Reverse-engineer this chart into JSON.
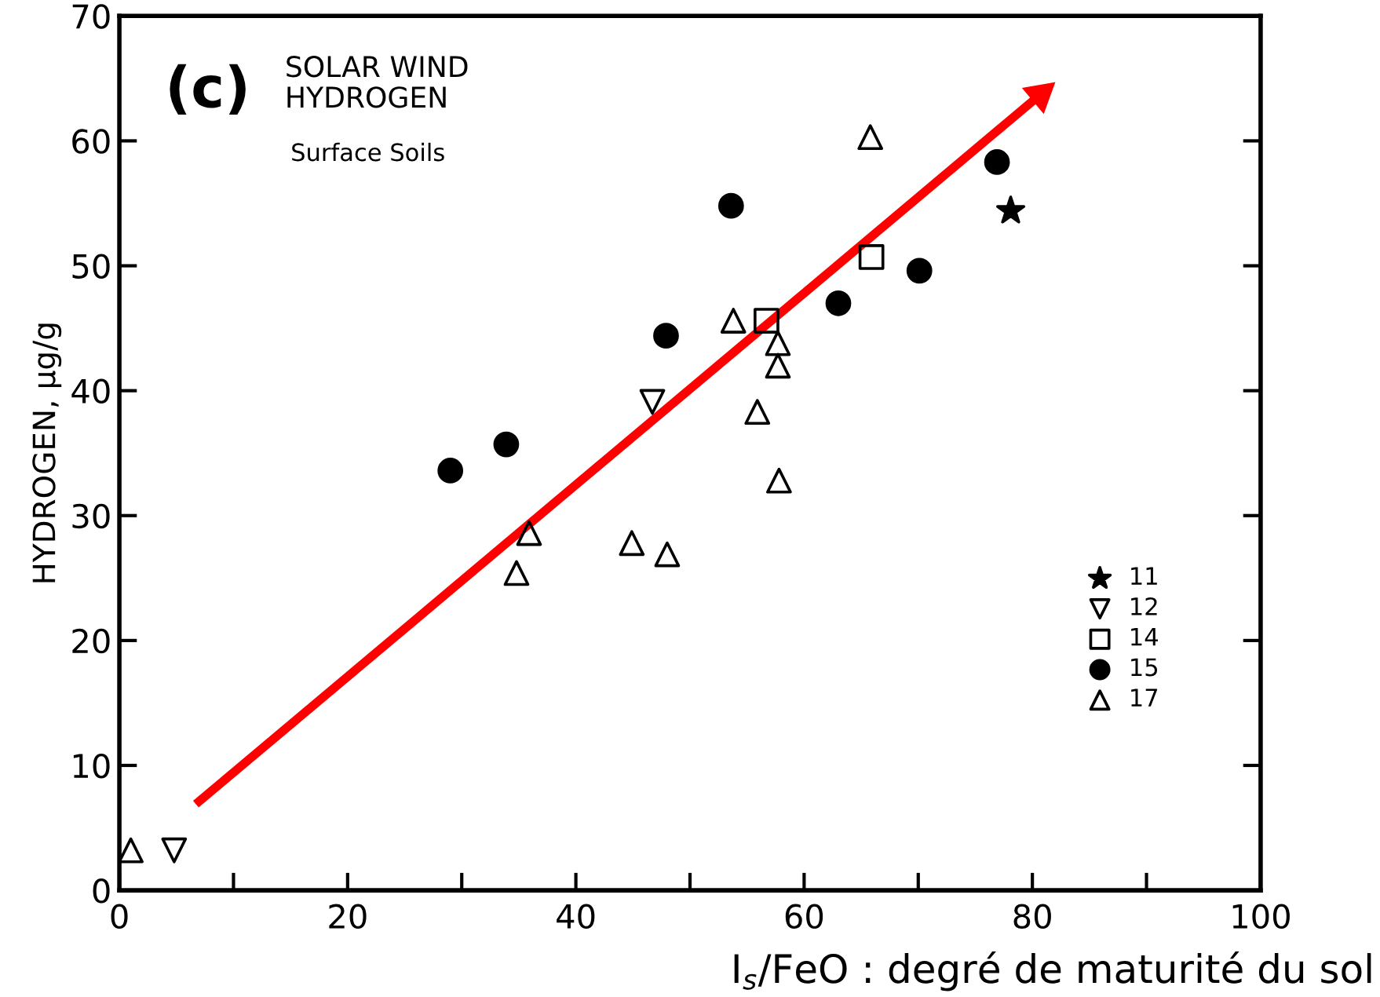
{
  "chart_data": {
    "type": "scatter",
    "title": "(c)",
    "subtitle": "SOLAR WIND\nHYDROGEN",
    "annotations": [
      "Surface Soils"
    ],
    "xlabel": "I$_{s}$/FeO : degré de maturité du sol",
    "ylabel": "HYDROGEN, µg/g",
    "xlim": [
      0,
      100
    ],
    "ylim": [
      0,
      70
    ],
    "xticks": [
      0,
      {
        "value": 10,
        "label": null
      },
      20,
      {
        "value": 30,
        "label": null
      },
      40,
      {
        "value": 50,
        "label": null
      },
      60,
      {
        "value": 70,
        "label": null
      },
      80,
      {
        "value": 90,
        "label": null
      },
      100
    ],
    "yticks": [
      0,
      10,
      20,
      30,
      40,
      50,
      60,
      70
    ],
    "grid": false,
    "legend": "lower right",
    "series": [
      {
        "name": "11",
        "color": "#000000",
        "marker": "star",
        "x": [
          78.1
        ],
        "values": [
          54.4
        ]
      },
      {
        "name": "12",
        "color": "#000000",
        "marker": "triangle_down",
        "x": [
          4.8,
          46.7
        ],
        "values": [
          3.2,
          39.1
        ]
      },
      {
        "name": "14",
        "color": "#000000",
        "marker": "square",
        "x": [
          65.9,
          56.7
        ],
        "values": [
          50.7,
          45.6
        ]
      },
      {
        "name": "15",
        "color": "#000000",
        "marker": "circle",
        "x": [
          29.0,
          33.9,
          47.9,
          53.6,
          63.0,
          70.1,
          76.9
        ],
        "values": [
          33.6,
          35.7,
          44.4,
          54.8,
          47.0,
          49.6,
          58.3
        ]
      },
      {
        "name": "17",
        "color": "#000000",
        "marker": "triangle",
        "x": [
          1.0,
          34.8,
          35.9,
          44.9,
          48.0,
          53.8,
          55.9,
          57.7,
          57.7,
          57.8,
          65.8
        ],
        "values": [
          3.2,
          25.4,
          28.6,
          27.8,
          26.9,
          45.6,
          38.3,
          43.8,
          42.0,
          32.8,
          60.3
        ]
      },
      {
        "type": "line",
        "color": "#ff0000",
        "x": [
          6.7,
          80.7
        ],
        "values": [
          6.9,
          63.7
        ]
      }
    ]
  }
}
